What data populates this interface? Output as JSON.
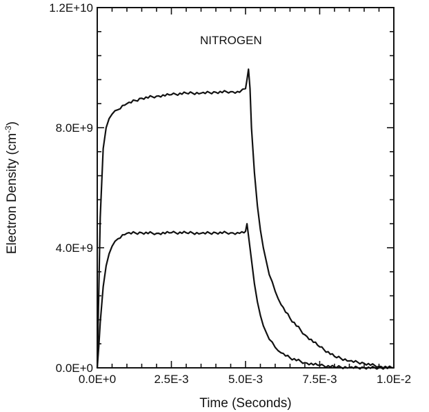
{
  "chart_data": {
    "type": "line",
    "title": "",
    "annotation": "NITROGEN",
    "xlabel": "Time (Seconds)",
    "ylabel": "Electron Density (cm",
    "ylabel_sup": "-3",
    "ylabel_close": ")",
    "xlim": [
      0,
      0.01
    ],
    "ylim": [
      0,
      12000000000
    ],
    "x_ticks": [
      "0.0E+0",
      "2.5E-3",
      "5.0E-3",
      "7.5E-3",
      "1.0E-2"
    ],
    "x_tick_values": [
      0,
      0.0025,
      0.005,
      0.0075,
      0.01
    ],
    "y_ticks": [
      "0.0E+0",
      "4.0E+9",
      "8.0E+9",
      "1.2E+10"
    ],
    "y_tick_values": [
      0,
      4000000000,
      8000000000,
      12000000000
    ],
    "series": [
      {
        "x": [
          0,
          5e-05,
          0.0001,
          0.0002,
          0.0003,
          0.0004,
          0.0005,
          0.0007,
          0.001,
          0.0015,
          0.002,
          0.0025,
          0.003,
          0.0035,
          0.004,
          0.0045,
          0.0048,
          0.005,
          0.00505,
          0.0051,
          0.00515,
          0.0052,
          0.0053,
          0.0054,
          0.0055,
          0.0056,
          0.0058,
          0.006,
          0.0062,
          0.0065,
          0.007,
          0.0075,
          0.008,
          0.0085,
          0.009,
          0.0095,
          0.01
        ],
        "values": [
          0,
          2500000000,
          5000000000,
          7300000000,
          8000000000,
          8300000000,
          8450000000,
          8600000000,
          8800000000,
          8980000000,
          9050000000,
          9100000000,
          9150000000,
          9150000000,
          9180000000,
          9200000000,
          9180000000,
          9300000000,
          9600000000,
          9950000000,
          9300000000,
          8000000000,
          6500000000,
          5400000000,
          4600000000,
          4000000000,
          3100000000,
          2550000000,
          2100000000,
          1650000000,
          1100000000,
          700000000,
          380000000,
          230000000,
          150000000,
          50000000,
          0
        ]
      },
      {
        "x": [
          0,
          5e-05,
          0.0001,
          0.0002,
          0.0003,
          0.0004,
          0.0005,
          0.0007,
          0.001,
          0.0015,
          0.002,
          0.0025,
          0.003,
          0.0035,
          0.004,
          0.0045,
          0.0048,
          0.00495,
          0.005,
          0.00505,
          0.0051,
          0.0052,
          0.0053,
          0.0054,
          0.0055,
          0.0056,
          0.0058,
          0.006,
          0.0062,
          0.0065,
          0.007,
          0.0075,
          0.008,
          0.0085,
          0.009,
          0.0095,
          0.01
        ],
        "values": [
          0,
          700000000,
          1500000000,
          2700000000,
          3400000000,
          3800000000,
          4050000000,
          4300000000,
          4480000000,
          4500000000,
          4480000000,
          4500000000,
          4500000000,
          4480000000,
          4500000000,
          4500000000,
          4480000000,
          4500000000,
          4550000000,
          4800000000,
          4400000000,
          3600000000,
          2800000000,
          2200000000,
          1750000000,
          1400000000,
          950000000,
          680000000,
          500000000,
          330000000,
          170000000,
          80000000,
          30000000,
          10000000,
          5000000,
          2000000,
          0
        ]
      }
    ],
    "grid": false,
    "legend": "none"
  }
}
